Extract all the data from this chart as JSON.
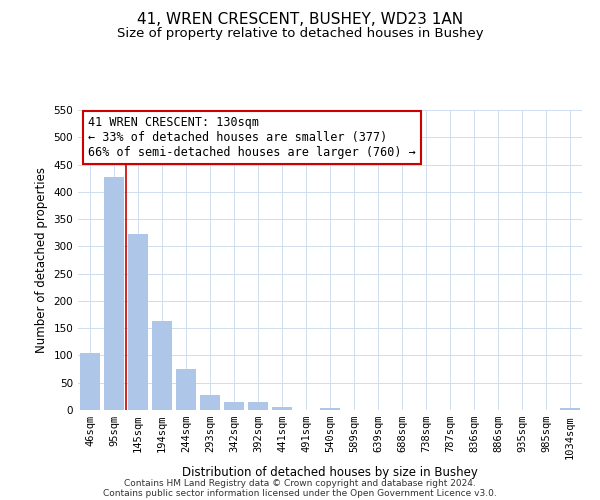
{
  "title": "41, WREN CRESCENT, BUSHEY, WD23 1AN",
  "subtitle": "Size of property relative to detached houses in Bushey",
  "xlabel": "Distribution of detached houses by size in Bushey",
  "ylabel": "Number of detached properties",
  "bar_labels": [
    "46sqm",
    "95sqm",
    "145sqm",
    "194sqm",
    "244sqm",
    "293sqm",
    "342sqm",
    "392sqm",
    "441sqm",
    "491sqm",
    "540sqm",
    "589sqm",
    "639sqm",
    "688sqm",
    "738sqm",
    "787sqm",
    "836sqm",
    "886sqm",
    "935sqm",
    "985sqm",
    "1034sqm"
  ],
  "bar_values": [
    105,
    428,
    322,
    163,
    75,
    27,
    14,
    14,
    5,
    0,
    4,
    0,
    0,
    0,
    0,
    0,
    0,
    0,
    0,
    0,
    4
  ],
  "bar_color": "#aec6e8",
  "vline_x": 1.5,
  "vline_color": "#cc0000",
  "ylim": [
    0,
    550
  ],
  "yticks": [
    0,
    50,
    100,
    150,
    200,
    250,
    300,
    350,
    400,
    450,
    500,
    550
  ],
  "annotation_line1": "41 WREN CRESCENT: 130sqm",
  "annotation_line2": "← 33% of detached houses are smaller (377)",
  "annotation_line3": "66% of semi-detached houses are larger (760) →",
  "annotation_box_color": "#ffffff",
  "annotation_box_edge": "#cc0000",
  "footer_line1": "Contains HM Land Registry data © Crown copyright and database right 2024.",
  "footer_line2": "Contains public sector information licensed under the Open Government Licence v3.0.",
  "background_color": "#ffffff",
  "grid_color": "#c8d8ec",
  "title_fontsize": 11,
  "subtitle_fontsize": 9.5,
  "axis_label_fontsize": 8.5,
  "tick_fontsize": 7.5,
  "annotation_fontsize": 8.5,
  "footer_fontsize": 6.5
}
